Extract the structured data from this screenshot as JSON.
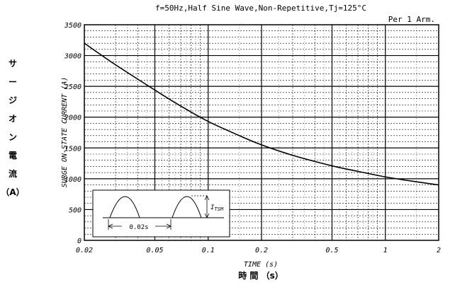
{
  "chart_data": {
    "type": "line",
    "title": "f=50Hz,Half Sine Wave,Non-Repetitive,Tj=125°C",
    "subtitle": "Per 1 Arm.",
    "xlabel": "TIME (s)",
    "xlabel_jp": "時  間  （s）",
    "ylabel": "SURGE ON-STATE CURRENT (A)",
    "ylabel_jp": [
      "サ",
      "ー",
      "ジ",
      "オ",
      "ン",
      "電",
      "流",
      "（A）"
    ],
    "xscale": "log",
    "xlim": [
      0.02,
      2
    ],
    "ylim": [
      0,
      3500
    ],
    "grid": true,
    "x_ticks": [
      {
        "value": 0.02,
        "label": "0.02"
      },
      {
        "value": 0.05,
        "label": "0.05"
      },
      {
        "value": 0.1,
        "label": "0.1"
      },
      {
        "value": 0.2,
        "label": "0.2"
      },
      {
        "value": 0.5,
        "label": "0.5"
      },
      {
        "value": 1,
        "label": "1"
      },
      {
        "value": 2,
        "label": "2"
      }
    ],
    "y_ticks": [
      {
        "value": 0,
        "label": "0"
      },
      {
        "value": 500,
        "label": "500"
      },
      {
        "value": 1000,
        "label": "1000"
      },
      {
        "value": 1500,
        "label": "1500"
      },
      {
        "value": 2000,
        "label": "2000"
      },
      {
        "value": 2500,
        "label": "2500"
      },
      {
        "value": 3000,
        "label": "3000"
      },
      {
        "value": 3500,
        "label": "3500"
      }
    ],
    "series": [
      {
        "x": [
          0.02,
          0.03,
          0.05,
          0.07,
          0.1,
          0.15,
          0.2,
          0.3,
          0.5,
          0.7,
          1,
          1.5,
          2
        ],
        "y": [
          3200,
          2850,
          2440,
          2180,
          1930,
          1700,
          1550,
          1380,
          1210,
          1120,
          1030,
          950,
          900
        ]
      }
    ],
    "inset": {
      "label_period": "0.02s",
      "label_itsm": "I",
      "label_itsm_sub": "TSM"
    }
  }
}
